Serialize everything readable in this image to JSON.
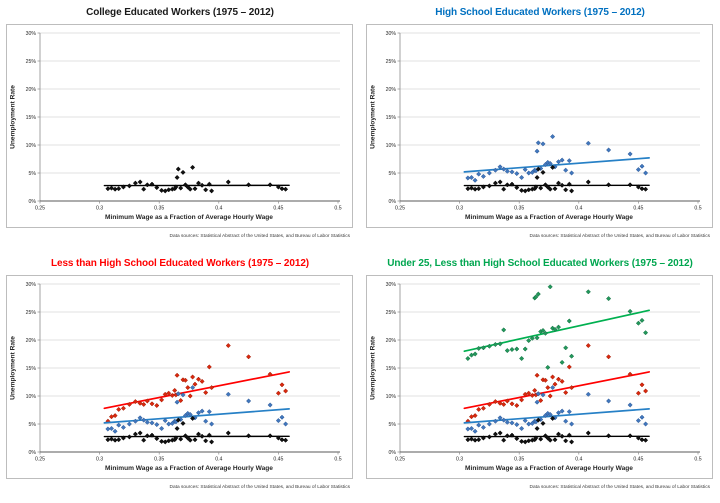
{
  "source_note": "Data sources: Statistical Abstract of the United States, and Bureau of Labor Statistics",
  "chart_data": {
    "type": "scatter",
    "xlabel": "Minimum Wage as a Fraction of Average Hourly Wage",
    "ylabel": "Unemployment Rate",
    "xlim": [
      0.25,
      0.5
    ],
    "ylim": [
      0,
      30
    ],
    "grid": "horizontal",
    "legend": "none",
    "x_ticks": [
      {
        "value": 0.25,
        "label": "0.25"
      },
      {
        "value": 0.3,
        "label": "0.3"
      },
      {
        "value": 0.35,
        "label": "0.35"
      },
      {
        "value": 0.4,
        "label": "0.4"
      },
      {
        "value": 0.45,
        "label": "0.45"
      },
      {
        "value": 0.5,
        "label": "0.5"
      }
    ],
    "y_ticks": [
      {
        "value": 0,
        "label": "0%"
      },
      {
        "value": 5,
        "label": "5%"
      },
      {
        "value": 10,
        "label": "10%"
      },
      {
        "value": 15,
        "label": "15%"
      },
      {
        "value": 20,
        "label": "20%"
      },
      {
        "value": 25,
        "label": "25%"
      },
      {
        "value": 30,
        "label": "30%"
      }
    ],
    "x": [
      0.307,
      0.31,
      0.313,
      0.316,
      0.32,
      0.325,
      0.33,
      0.334,
      0.337,
      0.34,
      0.344,
      0.348,
      0.352,
      0.355,
      0.358,
      0.361,
      0.363,
      0.364,
      0.365,
      0.366,
      0.368,
      0.37,
      0.372,
      0.374,
      0.376,
      0.378,
      0.38,
      0.383,
      0.386,
      0.389,
      0.392,
      0.394,
      0.408,
      0.425,
      0.443,
      0.45,
      0.453,
      0.456
    ],
    "trend_x": [
      0.304,
      0.459
    ],
    "series": [
      {
        "id": "college",
        "name": "College Educated Workers",
        "marker_fill": "#111111",
        "marker_stroke": "#000000",
        "trend_color": "#000000",
        "trend_width": 1.4,
        "trend_y": [
          2.75,
          2.8
        ],
        "values": [
          2.2,
          2.3,
          2.1,
          2.2,
          2.5,
          2.7,
          3.2,
          3.4,
          2.1,
          2.9,
          3.0,
          2.4,
          1.9,
          1.8,
          2.0,
          2.1,
          2.2,
          2.5,
          4.2,
          5.7,
          2.3,
          5.1,
          2.9,
          2.5,
          2.1,
          6.0,
          2.2,
          3.2,
          2.8,
          2.0,
          3.0,
          1.8,
          3.4,
          2.9,
          2.9,
          2.5,
          2.2,
          2.1
        ]
      },
      {
        "id": "high_school",
        "name": "High School Educated Workers",
        "marker_fill": "#4177BD",
        "marker_stroke": "#2A5592",
        "trend_color": "#2680C6",
        "trend_width": 1.7,
        "trend_y": [
          5.2,
          7.7
        ],
        "values": [
          4.1,
          4.2,
          3.7,
          4.8,
          4.4,
          5.0,
          5.5,
          6.1,
          5.7,
          5.3,
          5.2,
          4.9,
          4.2,
          5.6,
          5.0,
          5.1,
          5.5,
          5.4,
          8.9,
          10.4,
          5.8,
          10.2,
          6.5,
          6.9,
          6.7,
          11.5,
          6.1,
          7.0,
          7.3,
          5.5,
          7.2,
          5.0,
          10.3,
          9.1,
          8.4,
          5.6,
          6.2,
          5.0
        ]
      },
      {
        "id": "less_hs",
        "name": "Less than High School Educated Workers",
        "marker_fill": "#D8290F",
        "marker_stroke": "#9E1C06",
        "trend_color": "#FF0000",
        "trend_width": 1.7,
        "trend_y": [
          7.8,
          14.3
        ],
        "values": [
          5.5,
          6.3,
          6.5,
          7.6,
          7.8,
          8.5,
          9.0,
          8.7,
          8.5,
          9.1,
          8.6,
          8.3,
          9.3,
          10.3,
          10.5,
          10.1,
          11.0,
          10.2,
          13.7,
          10.4,
          9.2,
          12.9,
          12.8,
          11.5,
          10.0,
          13.4,
          12.1,
          13.0,
          12.6,
          10.6,
          15.2,
          11.5,
          19.0,
          17.0,
          13.9,
          10.5,
          12.0,
          10.9
        ]
      },
      {
        "id": "under25_less_hs",
        "name": "Under 25, Less than High School Educated Workers",
        "marker_fill": "#23975B",
        "marker_stroke": "#0F6B3E",
        "trend_color": "#00B050",
        "trend_width": 1.7,
        "trend_y": [
          18.0,
          25.3
        ],
        "values": [
          16.7,
          17.3,
          17.5,
          18.5,
          18.6,
          18.9,
          19.2,
          19.3,
          21.8,
          18.1,
          18.3,
          18.4,
          16.7,
          18.4,
          19.9,
          20.3,
          27.5,
          27.7,
          20.4,
          28.2,
          21.5,
          21.7,
          21.2,
          15.1,
          29.5,
          22.1,
          21.9,
          22.3,
          16.0,
          18.6,
          23.4,
          17.1,
          28.6,
          27.4,
          25.1,
          23.0,
          23.5,
          21.3
        ]
      }
    ],
    "charts": [
      {
        "title": "College Educated Workers (1975 – 2012)",
        "title_color": "#1A1A1A",
        "series_ids": [
          "college"
        ]
      },
      {
        "title": "High School Educated Workers (1975 – 2012)",
        "title_color": "#0070C0",
        "series_ids": [
          "high_school",
          "college"
        ]
      },
      {
        "title": "Less than High School Educated Workers (1975 – 2012)",
        "title_color": "#FF0000",
        "series_ids": [
          "less_hs",
          "high_school",
          "college"
        ]
      },
      {
        "title": "Under 25, Less than High School Educated Workers (1975 – 2012)",
        "title_color": "#00A64F",
        "series_ids": [
          "under25_less_hs",
          "less_hs",
          "high_school",
          "college"
        ]
      }
    ]
  }
}
